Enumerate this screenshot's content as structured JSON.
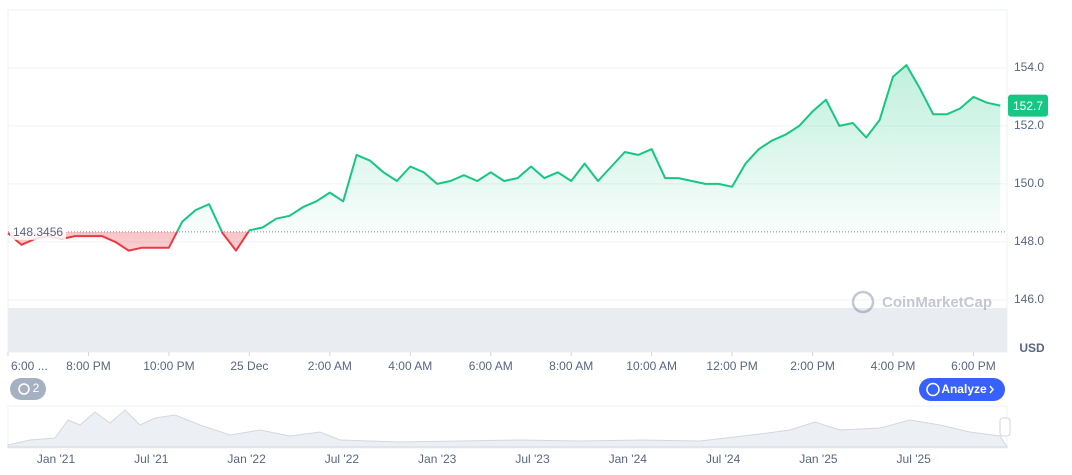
{
  "chart_data": {
    "type": "line",
    "values": [
      148.3,
      147.9,
      148.1,
      148.2,
      148.1,
      148.2,
      148.2,
      148.2,
      148.0,
      147.7,
      147.8,
      147.8,
      147.8,
      148.7,
      149.1,
      149.3,
      148.3,
      147.7,
      148.4,
      148.5,
      148.8,
      148.9,
      149.2,
      149.4,
      149.7,
      149.4,
      151.0,
      150.8,
      150.4,
      150.1,
      150.6,
      150.4,
      150.0,
      150.1,
      150.3,
      150.1,
      150.4,
      150.1,
      150.2,
      150.6,
      150.2,
      150.4,
      150.1,
      150.7,
      150.1,
      150.6,
      151.1,
      151.0,
      151.2,
      150.2,
      150.2,
      150.1,
      150.0,
      150.0,
      149.9,
      150.7,
      151.2,
      151.5,
      151.7,
      152.0,
      152.5,
      152.9,
      152.0,
      152.1,
      151.6,
      152.2,
      153.7,
      154.1,
      153.3,
      152.4,
      152.4,
      152.6,
      153.0,
      152.8,
      152.7
    ],
    "color_up": "#16c784",
    "color_down": "#ea3943",
    "baseline": 148.3456,
    "xlim": [
      0,
      74.5
    ],
    "xticks": [
      {
        "value": 0,
        "label": "6:00 ..."
      },
      {
        "value": 6,
        "label": "8:00 PM"
      },
      {
        "value": 12,
        "label": "10:00 PM"
      },
      {
        "value": 18,
        "label": "25 Dec"
      },
      {
        "value": 24,
        "label": "2:00 AM"
      },
      {
        "value": 30,
        "label": "4:00 AM"
      },
      {
        "value": 36,
        "label": "6:00 AM"
      },
      {
        "value": 42,
        "label": "8:00 AM"
      },
      {
        "value": 48,
        "label": "10:00 AM"
      },
      {
        "value": 54,
        "label": "12:00 PM"
      },
      {
        "value": 60,
        "label": "2:00 PM"
      },
      {
        "value": 66,
        "label": "4:00 PM"
      },
      {
        "value": 72,
        "label": "6:00 PM"
      }
    ],
    "ylim": [
      144.2,
      156
    ],
    "yticks": [
      {
        "value": 146,
        "label": "146.0"
      },
      {
        "value": 148,
        "label": "148.0"
      },
      {
        "value": 150,
        "label": "150.0"
      },
      {
        "value": 152,
        "label": "152.0"
      },
      {
        "value": 154,
        "label": "154.0"
      }
    ],
    "grid": true,
    "currency": "USD",
    "watermark": "CoinMarketCap",
    "navigator_labels": [
      "Jan '21",
      "Jul '21",
      "Jan '22",
      "Jul '22",
      "Jan '23",
      "Jul '23",
      "Jan '24",
      "Jul '24",
      "Jan '25",
      "Jul '25"
    ]
  },
  "toolbar": {
    "history_count": 2,
    "analyze": "Analyze"
  }
}
